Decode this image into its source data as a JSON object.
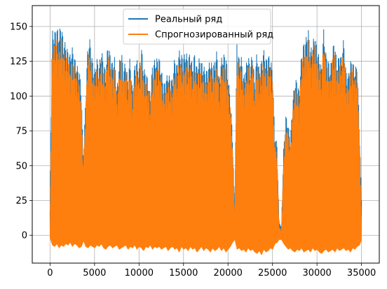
{
  "chart_data": {
    "type": "line",
    "title": "",
    "xlabel": "",
    "ylabel": "",
    "xlim": [
      -2000,
      37000
    ],
    "ylim": [
      -20,
      165
    ],
    "xticks": [
      0,
      5000,
      10000,
      15000,
      20000,
      25000,
      30000,
      35000
    ],
    "yticks": [
      0,
      25,
      50,
      75,
      100,
      125,
      150
    ],
    "grid": true,
    "legend_position": "top-center",
    "series": [
      {
        "name": "Реальный ряд",
        "color": "#1f77b4",
        "x": [
          0,
          250,
          500,
          750,
          1000,
          1250,
          1500,
          1750,
          2000,
          2250,
          2500,
          2750,
          3000,
          3250,
          3500,
          3750,
          4000,
          4250,
          4500,
          4750,
          5000,
          5250,
          5500,
          5750,
          6000,
          6250,
          6500,
          6750,
          7000,
          7250,
          7500,
          7750,
          8000,
          8250,
          8500,
          8750,
          9000,
          9250,
          9500,
          9750,
          10000,
          10250,
          10500,
          10750,
          11000,
          11250,
          11500,
          11750,
          12000,
          12250,
          12500,
          12750,
          13000,
          13250,
          13500,
          13750,
          14000,
          14250,
          14500,
          14750,
          15000,
          15250,
          15500,
          15750,
          16000,
          16250,
          16500,
          16750,
          17000,
          17250,
          17500,
          17750,
          18000,
          18250,
          18500,
          18750,
          19000,
          19250,
          19500,
          19750,
          20000,
          20250,
          20500,
          20750,
          21000,
          21250,
          21500,
          21750,
          22000,
          22250,
          22500,
          22750,
          23000,
          23250,
          23500,
          23750,
          24000,
          24250,
          24500,
          24750,
          25000,
          25250,
          25500,
          25750,
          26000,
          26250,
          26500,
          26750,
          27000,
          27250,
          27500,
          27750,
          28000,
          28250,
          28500,
          28750,
          29000,
          29250,
          29500,
          29750,
          30000,
          30250,
          30500,
          30750,
          31000,
          31250,
          31500,
          31750,
          32000,
          32250,
          32500,
          32750,
          33000,
          33250,
          33500,
          33750,
          34000,
          34250,
          34500,
          34750,
          35000
        ],
        "low": [
          2,
          0,
          1,
          0,
          2,
          0,
          1,
          0,
          0,
          1,
          0,
          2,
          0,
          1,
          0,
          2,
          1,
          0,
          0,
          1,
          0,
          2,
          0,
          1,
          0,
          1,
          0,
          0,
          2,
          0,
          1,
          0,
          0,
          2,
          1,
          0,
          1,
          0,
          0,
          2,
          0,
          1,
          0,
          1,
          0,
          0,
          1,
          0,
          2,
          0,
          1,
          0,
          1,
          0,
          0,
          2,
          0,
          1,
          0,
          1,
          0,
          0,
          1,
          0,
          2,
          0,
          1,
          0,
          1,
          0,
          0,
          2,
          0,
          1,
          0,
          0,
          1,
          0,
          2,
          0,
          1,
          0,
          0,
          1,
          0,
          2,
          0,
          1,
          0,
          0,
          1,
          0,
          2,
          0,
          1,
          0,
          1,
          0,
          0,
          2,
          0,
          1,
          0,
          1,
          0,
          0,
          2,
          0,
          1,
          0,
          1,
          0,
          0,
          2,
          0,
          1,
          0,
          0,
          1,
          0,
          2,
          0,
          1,
          0,
          1,
          0,
          0,
          2,
          0,
          1,
          0,
          1,
          0,
          0,
          1,
          0,
          2,
          0,
          1,
          0,
          3
        ],
        "high": [
          30,
          147,
          146,
          150,
          145,
          153,
          140,
          138,
          133,
          130,
          135,
          128,
          122,
          120,
          108,
          52,
          100,
          138,
          141,
          126,
          118,
          128,
          120,
          135,
          125,
          118,
          138,
          131,
          124,
          128,
          105,
          122,
          135,
          118,
          127,
          110,
          130,
          104,
          122,
          127,
          117,
          138,
          120,
          118,
          112,
          100,
          122,
          126,
          127,
          128,
          120,
          108,
          112,
          117,
          113,
          112,
          128,
          122,
          133,
          130,
          128,
          133,
          127,
          132,
          122,
          131,
          121,
          127,
          125,
          122,
          118,
          120,
          127,
          122,
          125,
          133,
          112,
          127,
          130,
          130,
          114,
          100,
          72,
          20,
          140,
          127,
          128,
          114,
          121,
          131,
          120,
          134,
          108,
          134,
          119,
          125,
          134,
          126,
          130,
          127,
          120,
          72,
          66,
          10,
          5,
          62,
          86,
          80,
          68,
          95,
          111,
          112,
          103,
          130,
          138,
          141,
          150,
          133,
          138,
          145,
          135,
          128,
          121,
          148,
          131,
          126,
          119,
          135,
          140,
          122,
          131,
          128,
          142,
          118,
          115,
          125,
          126,
          118,
          125,
          82,
          25
        ]
      },
      {
        "name": "Спрогнозированный ряд",
        "color": "#ff7f0e",
        "x": [
          0,
          250,
          500,
          750,
          1000,
          1250,
          1500,
          1750,
          2000,
          2250,
          2500,
          2750,
          3000,
          3250,
          3500,
          3750,
          4000,
          4250,
          4500,
          4750,
          5000,
          5250,
          5500,
          5750,
          6000,
          6250,
          6500,
          6750,
          7000,
          7250,
          7500,
          7750,
          8000,
          8250,
          8500,
          8750,
          9000,
          9250,
          9500,
          9750,
          10000,
          10250,
          10500,
          10750,
          11000,
          11250,
          11500,
          11750,
          12000,
          12250,
          12500,
          12750,
          13000,
          13250,
          13500,
          13750,
          14000,
          14250,
          14500,
          14750,
          15000,
          15250,
          15500,
          15750,
          16000,
          16250,
          16500,
          16750,
          17000,
          17250,
          17500,
          17750,
          18000,
          18250,
          18500,
          18750,
          19000,
          19250,
          19500,
          19750,
          20000,
          20250,
          20500,
          20750,
          21000,
          21250,
          21500,
          21750,
          22000,
          22250,
          22500,
          22750,
          23000,
          23250,
          23500,
          23750,
          24000,
          24250,
          24500,
          24750,
          25000,
          25250,
          25500,
          25750,
          26000,
          26250,
          26500,
          26750,
          27000,
          27250,
          27500,
          27750,
          28000,
          28250,
          28500,
          28750,
          29000,
          29250,
          29500,
          29750,
          30000,
          30250,
          30500,
          30750,
          31000,
          31250,
          31500,
          31750,
          32000,
          32250,
          32500,
          32750,
          33000,
          33250,
          33500,
          33750,
          34000,
          34250,
          34500,
          34750,
          35000
        ],
        "low": [
          -2,
          -7,
          -8,
          -6,
          -9,
          -7,
          -8,
          -6,
          -7,
          -5,
          -8,
          -6,
          -7,
          -9,
          -8,
          -4,
          -8,
          -9,
          -7,
          -8,
          -9,
          -7,
          -8,
          -6,
          -9,
          -10,
          -8,
          -7,
          -9,
          -8,
          -7,
          -10,
          -9,
          -8,
          -7,
          -10,
          -8,
          -9,
          -7,
          -10,
          -8,
          -9,
          -11,
          -8,
          -9,
          -7,
          -10,
          -8,
          -9,
          -8,
          -10,
          -9,
          -8,
          -11,
          -9,
          -8,
          -10,
          -9,
          -12,
          -8,
          -10,
          -9,
          -11,
          -8,
          -10,
          -9,
          -12,
          -10,
          -8,
          -11,
          -9,
          -10,
          -12,
          -9,
          -11,
          -10,
          -8,
          -11,
          -9,
          -12,
          -10,
          -8,
          -5,
          -3,
          -10,
          -9,
          -11,
          -10,
          -12,
          -9,
          -11,
          -10,
          -12,
          -13,
          -11,
          -14,
          -10,
          -12,
          -11,
          -9,
          -10,
          -6,
          -5,
          -3,
          -3,
          -6,
          -8,
          -10,
          -9,
          -11,
          -12,
          -10,
          -11,
          -9,
          -12,
          -11,
          -10,
          -12,
          -9,
          -11,
          -10,
          -12,
          -13,
          -11,
          -10,
          -12,
          -11,
          -10,
          -12,
          -9,
          -11,
          -10,
          -9,
          -11,
          -10,
          -12,
          -9,
          -10,
          -8,
          -7,
          -3
        ],
        "high": [
          8,
          135,
          138,
          140,
          131,
          144,
          132,
          128,
          129,
          120,
          126,
          121,
          115,
          110,
          98,
          45,
          93,
          128,
          132,
          118,
          112,
          120,
          113,
          126,
          118,
          112,
          131,
          124,
          118,
          122,
          98,
          114,
          128,
          112,
          120,
          104,
          122,
          97,
          115,
          120,
          111,
          130,
          113,
          110,
          106,
          94,
          115,
          118,
          120,
          120,
          112,
          101,
          105,
          110,
          106,
          105,
          120,
          114,
          125,
          122,
          120,
          125,
          119,
          124,
          114,
          123,
          113,
          119,
          117,
          114,
          110,
          112,
          119,
          114,
          118,
          125,
          104,
          119,
          122,
          122,
          106,
          93,
          65,
          14,
          131,
          119,
          120,
          107,
          113,
          123,
          112,
          126,
          101,
          126,
          111,
          117,
          126,
          118,
          122,
          119,
          112,
          65,
          60,
          6,
          3,
          56,
          80,
          74,
          62,
          88,
          104,
          105,
          96,
          122,
          131,
          134,
          143,
          126,
          131,
          138,
          129,
          121,
          115,
          141,
          125,
          120,
          112,
          128,
          134,
          116,
          124,
          122,
          135,
          111,
          108,
          119,
          120,
          112,
          119,
          79,
          6
        ]
      }
    ]
  }
}
